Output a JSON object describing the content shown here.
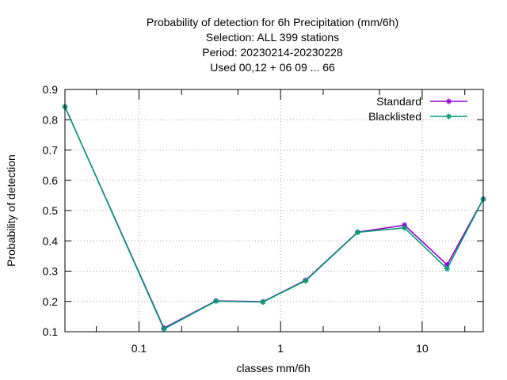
{
  "chart_data": {
    "type": "line",
    "title_lines": [
      "Probability of detection  for 6h Precipitation (mm/6h)",
      "Selection: ALL    399 stations",
      "Period: 20230214-20230228",
      "Used  00,12  + 06 09 ... 66"
    ],
    "xlabel": "classes mm/6h",
    "ylabel": "Probability of detection",
    "xscale": "log",
    "xlim": [
      0.03,
      27
    ],
    "ylim": [
      0.1,
      0.9
    ],
    "y_ticks": [
      0.1,
      0.2,
      0.3,
      0.4,
      0.5,
      0.6,
      0.7,
      0.8,
      0.9
    ],
    "y_tick_labels": [
      "0.1",
      "0.2",
      "0.3",
      "0.4",
      "0.5",
      "0.6",
      "0.7",
      "0.8",
      "0.9"
    ],
    "x_ticks": [
      0.1,
      1,
      10
    ],
    "x_tick_labels": [
      "0.1",
      "1",
      "10"
    ],
    "x_minor_ticks": [
      0.05,
      0.2,
      0.5,
      2,
      5,
      20
    ],
    "grid": true,
    "legend_position": "top-right",
    "x": [
      0.03,
      0.15,
      0.35,
      0.75,
      1.5,
      3.5,
      7.5,
      15,
      27
    ],
    "series": [
      {
        "name": "Standard",
        "color": "#9400d3",
        "values": [
          0.843,
          0.112,
          0.202,
          0.199,
          0.27,
          0.429,
          0.452,
          0.321,
          0.538
        ]
      },
      {
        "name": "Blacklisted",
        "color": "#009e73",
        "values": [
          0.843,
          0.109,
          0.201,
          0.198,
          0.268,
          0.428,
          0.443,
          0.308,
          0.538
        ]
      }
    ]
  }
}
